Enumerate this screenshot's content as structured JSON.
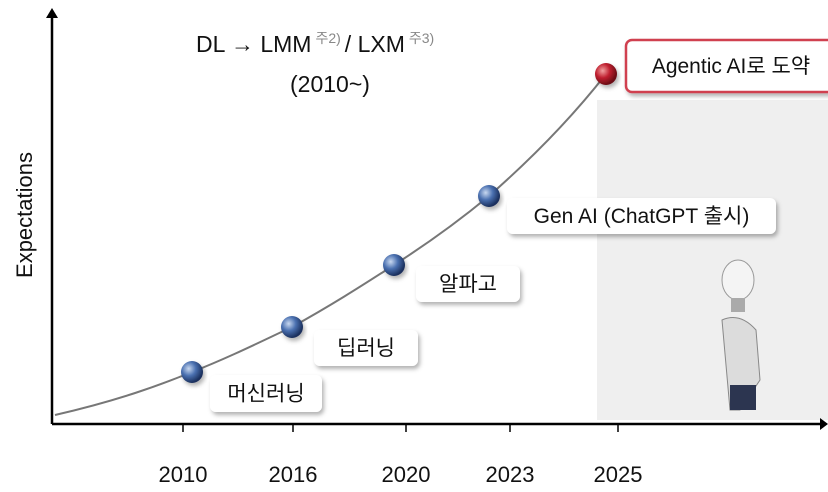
{
  "y_axis_label": "Expectations",
  "heading": {
    "part1": "DL → LMM",
    "note1": "주2)",
    "part2": "/ LXM",
    "note2": "주3)",
    "period": "(2010~)"
  },
  "milestones": [
    {
      "label": "머신러닝",
      "year": "2010"
    },
    {
      "label": "딥러닝",
      "year": "2016"
    },
    {
      "label": "알파고",
      "year": "2020"
    },
    {
      "label": "Gen AI (ChatGPT 출시)",
      "year": "2023"
    },
    {
      "label": "Agentic AI로 도약",
      "year": "2025"
    }
  ]
}
